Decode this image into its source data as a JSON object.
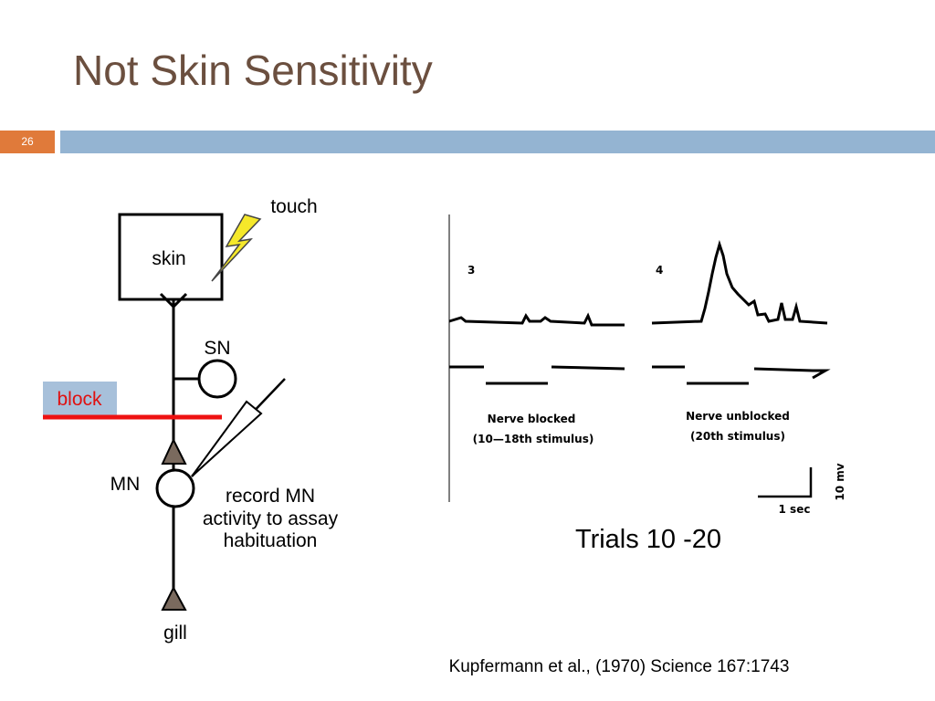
{
  "header": {
    "title": "Not Skin Sensitivity",
    "slide_number": "26"
  },
  "diagram": {
    "touch": "touch",
    "skin": "skin",
    "sn": "SN",
    "block": "block",
    "mn": "MN",
    "record": [
      "record MN",
      "activity to assay",
      "habituation"
    ],
    "gill": "gill"
  },
  "figure": {
    "panel_left": "3",
    "panel_right": "4",
    "left_caption": [
      "Nerve blocked",
      "(10—18th stimulus)"
    ],
    "right_caption": [
      "Nerve unblocked",
      "(20th stimulus)"
    ],
    "scale_v": "10 mv",
    "scale_h": "1 sec",
    "trials": "Trials 10 -20"
  },
  "citation": "Kupfermann et al., (1970) Science 167:1743"
}
